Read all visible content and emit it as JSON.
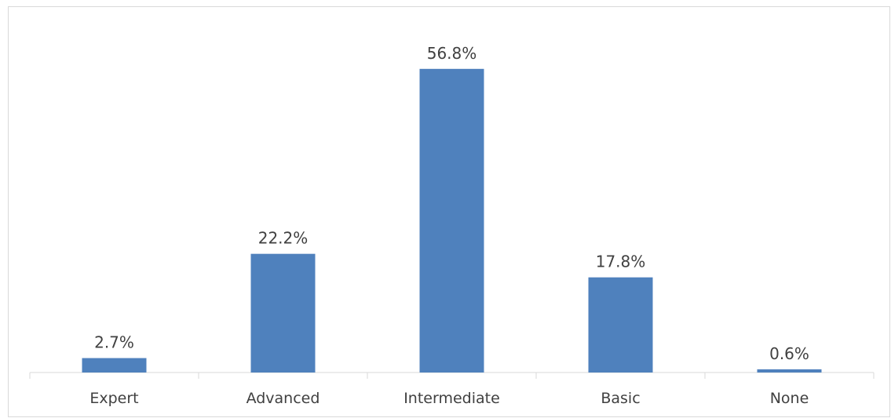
{
  "chart_data": {
    "type": "bar",
    "categories": [
      "Expert",
      "Advanced",
      "Intermediate",
      "Basic",
      "None"
    ],
    "values": [
      2.7,
      22.2,
      56.8,
      17.8,
      0.6
    ],
    "data_labels": [
      "2.7%",
      "22.2%",
      "56.8%",
      "17.8%",
      "0.6%"
    ],
    "title": "",
    "xlabel": "",
    "ylabel": "",
    "ylim": [
      0,
      60
    ],
    "grid": false,
    "legend": "none",
    "colors": {
      "bar": "#4f81bd",
      "axis": "#d9d9d9",
      "text": "#404040"
    }
  }
}
